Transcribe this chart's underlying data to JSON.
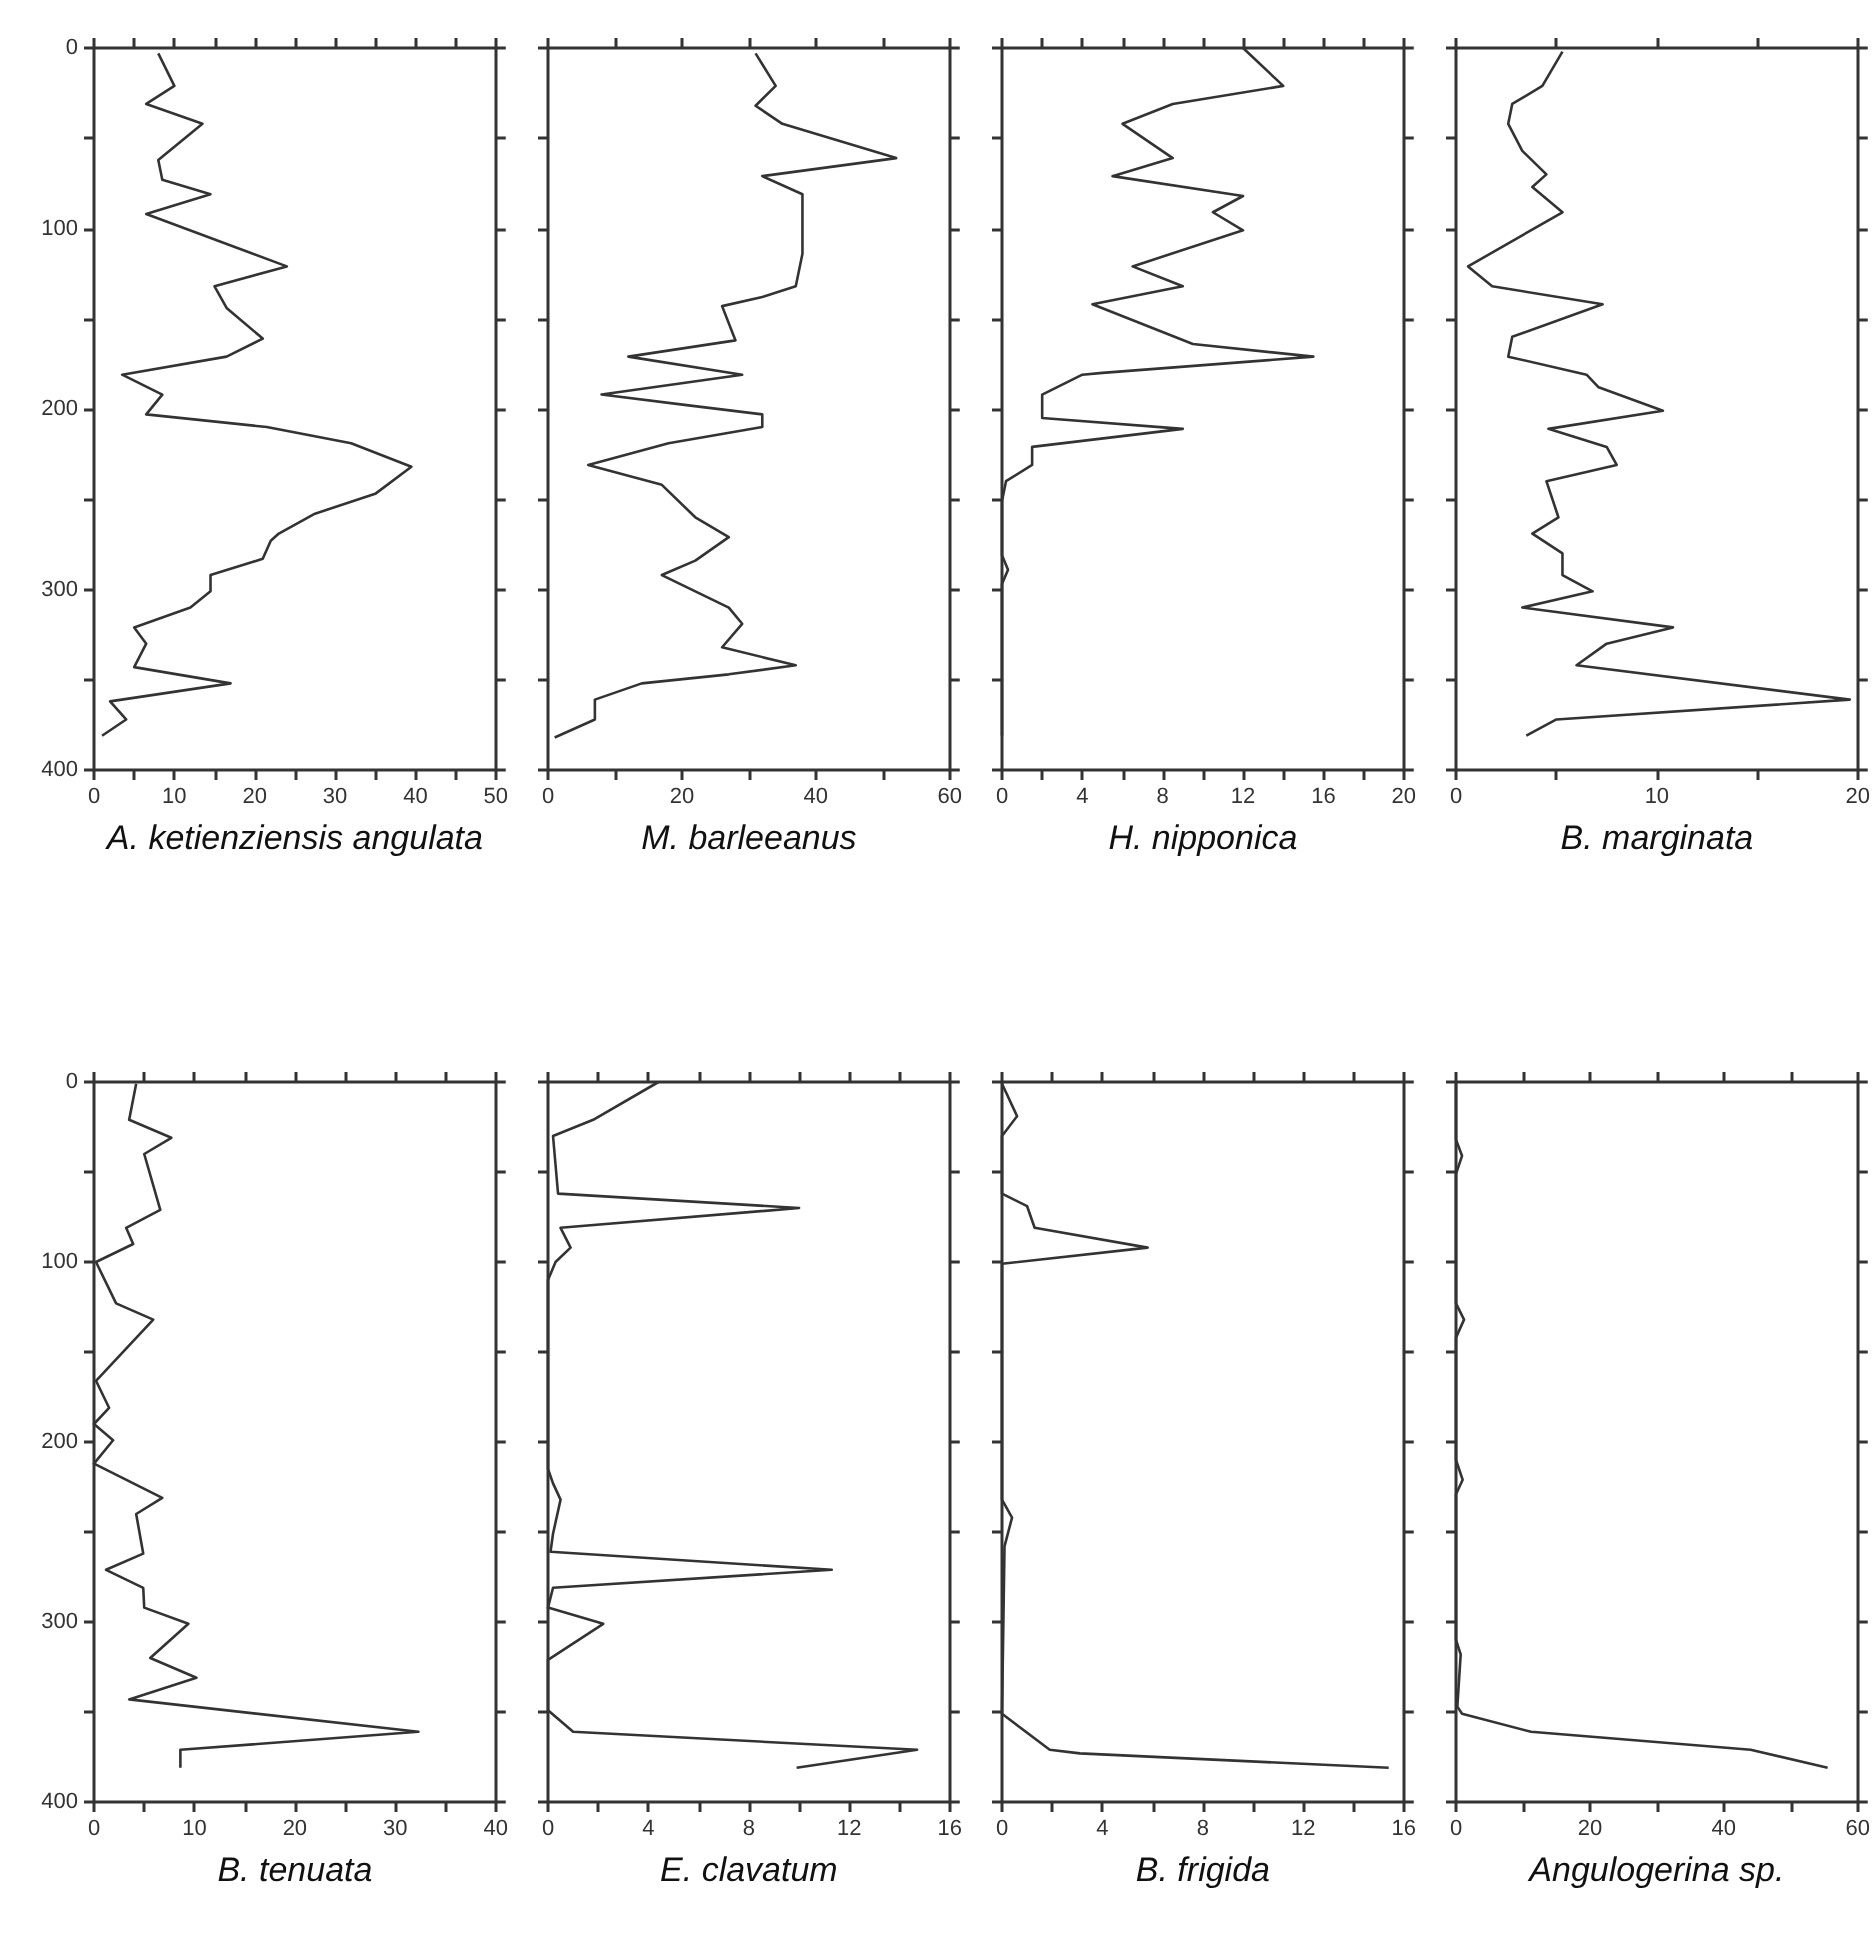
{
  "chart_data": [
    {
      "type": "line",
      "xlabel": "A. ketienziensis angulata",
      "xlim": [
        0,
        50
      ],
      "xticks": [
        0,
        {
          "value": 5,
          "label": null
        },
        10,
        {
          "value": 15,
          "label": null
        },
        20,
        {
          "value": 25,
          "label": null
        },
        30,
        {
          "value": 35,
          "label": null
        },
        40,
        {
          "value": 45,
          "label": null
        },
        50
      ],
      "ylim": [
        400,
        0
      ],
      "yticks": [
        0,
        {
          "value": 50,
          "label": null
        },
        100,
        {
          "value": 150,
          "label": null
        },
        200,
        {
          "value": 250,
          "label": null
        },
        300,
        {
          "value": 350,
          "label": null
        },
        400
      ],
      "series": [
        {
          "color": "#333333",
          "x": [
            8,
            10,
            6.5,
            13.5,
            8,
            8.5,
            14.5,
            6.5,
            24,
            15,
            16.5,
            21,
            16.5,
            3.5,
            8.5,
            6.5,
            21.5,
            32,
            39.5,
            35,
            27.5,
            23,
            22,
            21,
            14.5,
            14.5,
            12,
            5,
            6.5,
            5,
            17,
            2,
            4,
            1
          ],
          "values": [
            3,
            21,
            31,
            42,
            62,
            73,
            81,
            92,
            121,
            132,
            144,
            161,
            171,
            181,
            192,
            203,
            210,
            219,
            232,
            247,
            258,
            269,
            273,
            283,
            292,
            301,
            310,
            321,
            330,
            343,
            352,
            362,
            372,
            381
          ]
        }
      ]
    },
    {
      "type": "line",
      "xlabel": "M. barleeanus",
      "xlim": [
        0,
        60
      ],
      "xticks": [
        0,
        {
          "value": 10,
          "label": null
        },
        20,
        {
          "value": 30,
          "label": null
        },
        40,
        {
          "value": 50,
          "label": null
        },
        60
      ],
      "ylim": [
        400,
        0
      ],
      "yticks": [
        0,
        {
          "value": 50,
          "label": null
        },
        100,
        {
          "value": 150,
          "label": null
        },
        200,
        {
          "value": 250,
          "label": null
        },
        300,
        {
          "value": 350,
          "label": null
        },
        400
      ],
      "tick_labels": "x",
      "series": [
        {
          "color": "#333333",
          "x": [
            31,
            34,
            31,
            35,
            52,
            32,
            38,
            38,
            38,
            37,
            32,
            26,
            28,
            12,
            29,
            8,
            21,
            32,
            32,
            18,
            6,
            17,
            22,
            27,
            22,
            17,
            27,
            29,
            26,
            37,
            27,
            14,
            7,
            7,
            1
          ],
          "values": [
            3,
            21,
            32,
            42,
            61,
            71,
            81,
            92,
            114,
            132,
            138,
            143,
            162,
            171,
            181,
            192,
            198,
            203,
            210,
            219,
            231,
            242,
            260,
            271,
            284,
            292,
            310,
            319,
            332,
            342,
            347,
            352,
            361,
            372,
            382
          ]
        }
      ]
    },
    {
      "type": "line",
      "xlabel": "H. nipponica",
      "xlim": [
        0,
        20
      ],
      "xticks": [
        0,
        {
          "value": 2,
          "label": null
        },
        4,
        {
          "value": 6,
          "label": null
        },
        8,
        {
          "value": 10,
          "label": null
        },
        12,
        {
          "value": 14,
          "label": null
        },
        16,
        {
          "value": 18,
          "label": null
        },
        20
      ],
      "ylim": [
        400,
        0
      ],
      "yticks": [
        0,
        {
          "value": 50,
          "label": null
        },
        100,
        {
          "value": 150,
          "label": null
        },
        200,
        {
          "value": 250,
          "label": null
        },
        300,
        {
          "value": 350,
          "label": null
        },
        400
      ],
      "tick_labels": "x",
      "series": [
        {
          "color": "#333333",
          "x": [
            12,
            14,
            8.5,
            6,
            8.5,
            5.5,
            12,
            10.5,
            12,
            6.5,
            9,
            4.5,
            9.5,
            15.5,
            5,
            4,
            2,
            2,
            9,
            1.5,
            1.5,
            0.2,
            0,
            0,
            0.3,
            0,
            0
          ],
          "values": [
            0,
            21,
            31,
            42,
            61,
            71,
            82,
            91,
            101,
            121,
            132,
            142,
            164,
            171,
            180,
            181,
            192,
            205,
            211,
            221,
            231,
            240,
            251,
            281,
            289,
            297,
            381
          ]
        }
      ]
    },
    {
      "type": "line",
      "xlabel": "B. marginata",
      "xlim": [
        0,
        20
      ],
      "xticks": [
        0,
        {
          "value": 5,
          "label": null
        },
        10,
        {
          "value": 15,
          "label": null
        },
        20
      ],
      "ylim": [
        400,
        0
      ],
      "yticks": [
        0,
        {
          "value": 50,
          "label": null
        },
        100,
        {
          "value": 150,
          "label": null
        },
        200,
        {
          "value": 250,
          "label": null
        },
        300,
        {
          "value": 350,
          "label": null
        },
        400
      ],
      "tick_labels": "x",
      "series": [
        {
          "color": "#333333",
          "x": [
            5.3,
            4.3,
            2.8,
            2.6,
            3.3,
            4.5,
            3.8,
            5.3,
            0.6,
            1.8,
            7.3,
            2.8,
            2.6,
            6.5,
            7.1,
            10.3,
            4.6,
            7.5,
            8,
            4.5,
            5.1,
            3.8,
            5.3,
            5.3,
            6.8,
            3.3,
            10.8,
            7.5,
            6,
            19.6,
            5,
            3.5
          ],
          "values": [
            2,
            21,
            31,
            42,
            57,
            70,
            77,
            91,
            121,
            132,
            142,
            160,
            171,
            181,
            188,
            201,
            211,
            221,
            231,
            240,
            260,
            269,
            280,
            292,
            301,
            310,
            321,
            330,
            342,
            361,
            372,
            381
          ]
        }
      ]
    },
    {
      "type": "line",
      "xlabel": "B. tenuata",
      "xlim": [
        0,
        40
      ],
      "xticks": [
        0,
        {
          "value": 5,
          "label": null
        },
        10,
        {
          "value": 15,
          "label": null
        },
        20,
        {
          "value": 25,
          "label": null
        },
        30,
        {
          "value": 35,
          "label": null
        },
        40
      ],
      "ylim": [
        400,
        0
      ],
      "yticks": [
        0,
        {
          "value": 50,
          "label": null
        },
        100,
        {
          "value": 150,
          "label": null
        },
        200,
        {
          "value": 250,
          "label": null
        },
        300,
        {
          "value": 350,
          "label": null
        },
        400
      ],
      "series": [
        {
          "color": "#333333",
          "x": [
            4.2,
            3.5,
            7.7,
            5,
            6.6,
            3.2,
            3.9,
            0.2,
            2.2,
            5.9,
            0.2,
            1.5,
            0,
            1.9,
            0,
            6.8,
            4.2,
            4.9,
            1.2,
            4.9,
            5,
            9.4,
            5.6,
            10.2,
            3.5,
            32.3,
            8.6,
            8.6
          ],
          "values": [
            1,
            21,
            31,
            40,
            71,
            81,
            90,
            100,
            123,
            132,
            166,
            181,
            190,
            199,
            212,
            231,
            240,
            262,
            271,
            281,
            292,
            301,
            320,
            331,
            343,
            361,
            371,
            381
          ]
        }
      ]
    },
    {
      "type": "line",
      "xlabel": "E. clavatum",
      "xlim": [
        0,
        16
      ],
      "xticks": [
        0,
        {
          "value": 2,
          "label": null
        },
        4,
        {
          "value": 6,
          "label": null
        },
        8,
        {
          "value": 10,
          "label": null
        },
        12,
        {
          "value": 14,
          "label": null
        },
        16
      ],
      "ylim": [
        400,
        0
      ],
      "yticks": [
        0,
        {
          "value": 50,
          "label": null
        },
        100,
        {
          "value": 150,
          "label": null
        },
        200,
        {
          "value": 250,
          "label": null
        },
        300,
        {
          "value": 350,
          "label": null
        },
        400
      ],
      "tick_labels": "x",
      "series": [
        {
          "color": "#333333",
          "x": [
            4.4,
            1.8,
            0.2,
            0.4,
            10,
            0.5,
            0.9,
            0.3,
            0,
            0,
            0.2,
            0.5,
            0.2,
            0.1,
            11.3,
            0.2,
            0,
            2.2,
            0,
            0,
            1,
            14.7,
            9.9
          ],
          "values": [
            0,
            21,
            30,
            62,
            70,
            81,
            92,
            100,
            110,
            215,
            223,
            232,
            251,
            261,
            271,
            281,
            292,
            301,
            321,
            349,
            361,
            371,
            381
          ]
        }
      ]
    },
    {
      "type": "line",
      "xlabel": "B. frigida",
      "xlim": [
        0,
        16
      ],
      "xticks": [
        0,
        {
          "value": 2,
          "label": null
        },
        4,
        {
          "value": 6,
          "label": null
        },
        8,
        {
          "value": 10,
          "label": null
        },
        12,
        {
          "value": 14,
          "label": null
        },
        16
      ],
      "ylim": [
        400,
        0
      ],
      "yticks": [
        0,
        {
          "value": 50,
          "label": null
        },
        100,
        {
          "value": 150,
          "label": null
        },
        200,
        {
          "value": 250,
          "label": null
        },
        300,
        {
          "value": 350,
          "label": null
        },
        400
      ],
      "tick_labels": "x",
      "series": [
        {
          "color": "#333333",
          "x": [
            0,
            0.6,
            0,
            0,
            1,
            1.3,
            5.8,
            0,
            0,
            0.4,
            0.1,
            0,
            1.9,
            3.1,
            15.4
          ],
          "values": [
            1,
            19,
            30,
            62,
            69,
            81,
            92,
            101,
            232,
            242,
            258,
            351,
            371,
            373,
            381
          ]
        }
      ]
    },
    {
      "type": "line",
      "xlabel": "Angulogerina sp.",
      "xlim": [
        0,
        60
      ],
      "xticks": [
        0,
        {
          "value": 10,
          "label": null
        },
        20,
        {
          "value": 30,
          "label": null
        },
        40,
        {
          "value": 50,
          "label": null
        },
        60
      ],
      "ylim": [
        400,
        0
      ],
      "yticks": [
        0,
        {
          "value": 50,
          "label": null
        },
        100,
        {
          "value": 150,
          "label": null
        },
        200,
        {
          "value": 250,
          "label": null
        },
        300,
        {
          "value": 350,
          "label": null
        },
        400
      ],
      "tick_labels": "x",
      "series": [
        {
          "color": "#333333",
          "x": [
            0,
            0,
            0.9,
            0,
            0,
            1.2,
            0,
            0,
            1,
            0,
            0,
            0.7,
            0.2,
            0.9,
            11.2,
            44,
            55.5
          ],
          "values": [
            1,
            32,
            41,
            51,
            123,
            132,
            142,
            210,
            221,
            229,
            310,
            318,
            347,
            351,
            361,
            371,
            381
          ]
        }
      ]
    }
  ]
}
